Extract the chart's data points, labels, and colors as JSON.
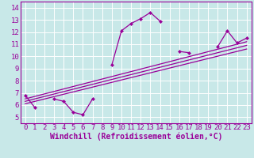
{
  "title": "",
  "xlabel": "Windchill (Refroidissement éolien,°C)",
  "ylabel": "",
  "background_color": "#c8e8e8",
  "grid_color": "#ffffff",
  "line_color": "#990099",
  "xlim": [
    -0.5,
    23.5
  ],
  "ylim": [
    4.5,
    14.5
  ],
  "xticks": [
    0,
    1,
    2,
    3,
    4,
    5,
    6,
    7,
    8,
    9,
    10,
    11,
    12,
    13,
    14,
    15,
    16,
    17,
    18,
    19,
    20,
    21,
    22,
    23
  ],
  "yticks": [
    5,
    6,
    7,
    8,
    9,
    10,
    11,
    12,
    13,
    14
  ],
  "main_series": [
    6.8,
    5.8,
    null,
    6.5,
    6.3,
    5.4,
    5.2,
    6.5,
    null,
    9.3,
    12.1,
    12.7,
    13.1,
    13.6,
    12.9,
    null,
    10.4,
    10.3,
    null,
    null,
    10.8,
    12.1,
    11.1,
    11.5
  ],
  "regression_lines": [
    {
      "x": [
        0,
        23
      ],
      "y": [
        6.5,
        11.2
      ]
    },
    {
      "x": [
        0,
        23
      ],
      "y": [
        6.3,
        10.9
      ]
    },
    {
      "x": [
        0,
        23
      ],
      "y": [
        6.1,
        10.6
      ]
    }
  ],
  "font_family": "monospace",
  "xlabel_fontsize": 7,
  "tick_fontsize": 6.5
}
